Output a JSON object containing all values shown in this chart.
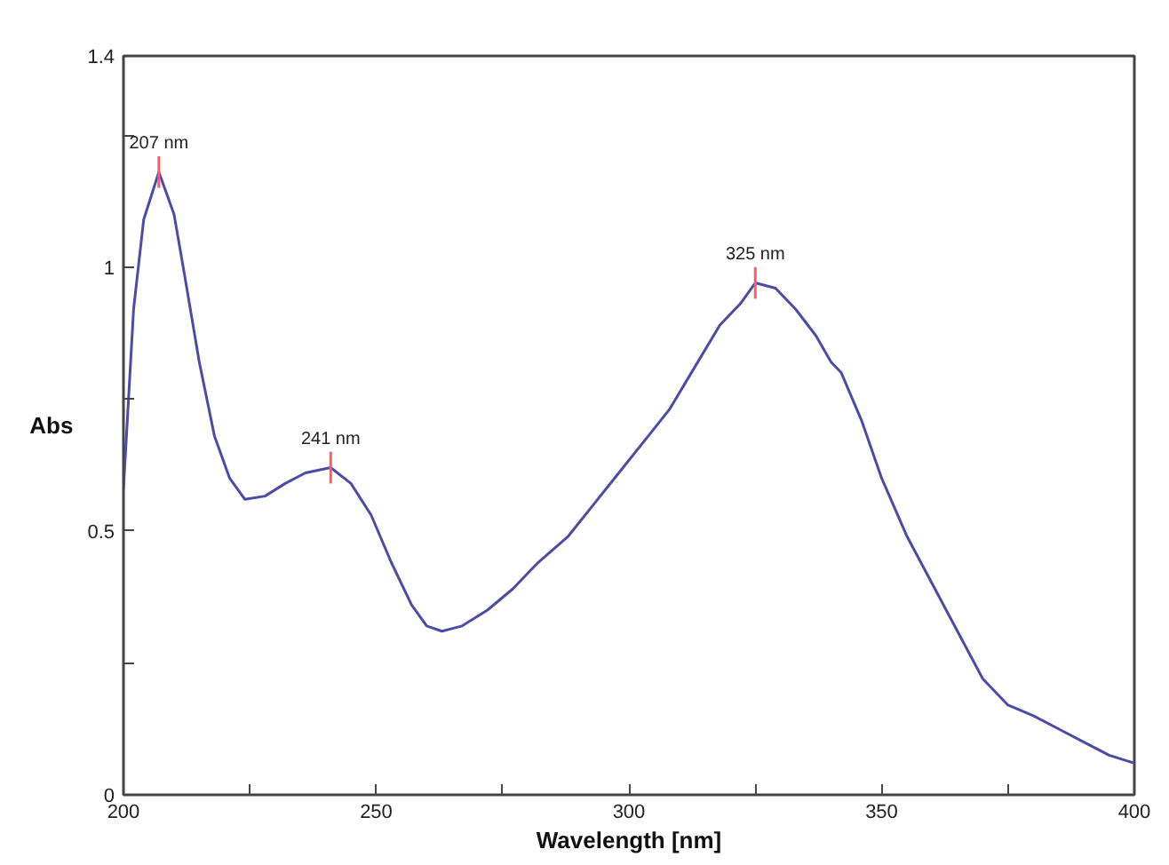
{
  "chart_data": {
    "type": "line",
    "xlabel": "Wavelength [nm]",
    "ylabel": "Abs",
    "x": [
      200,
      202,
      204,
      207,
      210,
      212,
      215,
      218,
      221,
      224,
      228,
      232,
      236,
      241,
      245,
      249,
      253,
      257,
      260,
      263,
      267,
      272,
      277,
      282,
      288,
      293,
      298,
      303,
      308,
      313,
      318,
      322,
      325,
      329,
      333,
      337,
      340,
      342,
      346,
      350,
      355,
      360,
      365,
      370,
      375,
      380,
      385,
      390,
      395,
      400
    ],
    "series": [
      {
        "color": "#4b4ba8",
        "values": [
          0.58,
          0.92,
          1.09,
          1.18,
          1.1,
          0.99,
          0.82,
          0.68,
          0.6,
          0.56,
          0.566,
          0.59,
          0.61,
          0.62,
          0.59,
          0.53,
          0.44,
          0.36,
          0.32,
          0.31,
          0.32,
          0.35,
          0.39,
          0.44,
          0.49,
          0.55,
          0.61,
          0.67,
          0.73,
          0.81,
          0.89,
          0.93,
          0.97,
          0.96,
          0.92,
          0.87,
          0.82,
          0.8,
          0.71,
          0.6,
          0.49,
          0.4,
          0.31,
          0.22,
          0.17,
          0.15,
          0.125,
          0.1,
          0.075,
          0.06
        ]
      }
    ],
    "xlim": [
      200,
      400
    ],
    "ylim": [
      0,
      1.4
    ],
    "xticks": [
      200,
      {
        "value": 225,
        "label": null
      },
      250,
      {
        "value": 275,
        "label": null
      },
      300,
      {
        "value": 325,
        "label": null
      },
      350,
      {
        "value": 375,
        "label": null
      },
      400
    ],
    "yticks": [
      0,
      {
        "value": 0.25,
        "label": null
      },
      0.5,
      {
        "value": 0.75,
        "label": null
      },
      1,
      {
        "value": 1.25,
        "label": null
      },
      1.4
    ],
    "grid": false,
    "marker": "none",
    "line_style": "solid",
    "annotations": [
      {
        "text": "207 nm",
        "x": 207,
        "y": 1.18
      },
      {
        "text": "241 nm",
        "x": 241,
        "y": 0.62
      },
      {
        "text": "325 nm",
        "x": 325,
        "y": 0.97
      }
    ]
  }
}
